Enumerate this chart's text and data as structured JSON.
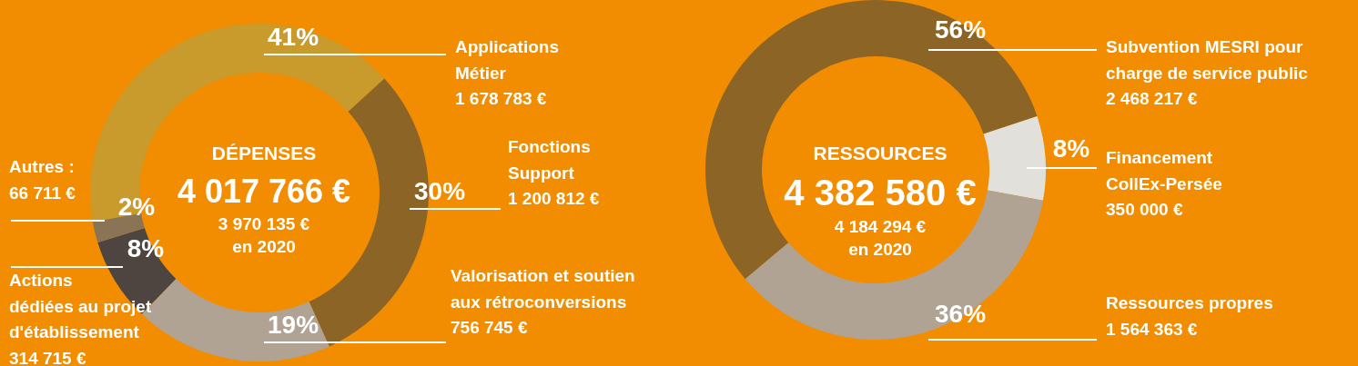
{
  "chart_data": [
    {
      "type": "donut",
      "title": "DÉPENSES",
      "subtitle": "4 017 766 €",
      "annotations": [
        "3 970 135 €\nen 2020"
      ],
      "categories": [
        "Applications\nMétier\n1 678 783 €",
        "Fonctions\nSupport\n1 200 812 €",
        "Valorisation et soutien\naux rétroconversions\n756 745 €",
        "Actions\ndédiées au projet\nd'établissement\n314 715 €",
        "Autres :\n66 711 €"
      ],
      "values": [
        41,
        30,
        19,
        8,
        2
      ],
      "value_labels": [
        "41%",
        "30%",
        "19%",
        "8%",
        "2%"
      ],
      "colors": [
        "#c99a2c",
        "#8c6526",
        "#b1a394",
        "#4e4541",
        "#8a7455"
      ],
      "legend": false
    },
    {
      "type": "donut",
      "title": "RESSOURCES",
      "subtitle": "4 382 580 €",
      "annotations": [
        "4 184 294 €\nen 2020"
      ],
      "categories": [
        "Subvention MESRI pour\ncharge de service public\n2 468 217 €",
        "Financement\nCollEx-Persée\n350 000 €",
        "Ressources propres\n1 564 363 €"
      ],
      "values": [
        56,
        8,
        36
      ],
      "value_labels": [
        "56%",
        "8%",
        "36%"
      ],
      "colors": [
        "#8c6526",
        "#e1e0db",
        "#b1a394"
      ],
      "legend": false
    }
  ]
}
